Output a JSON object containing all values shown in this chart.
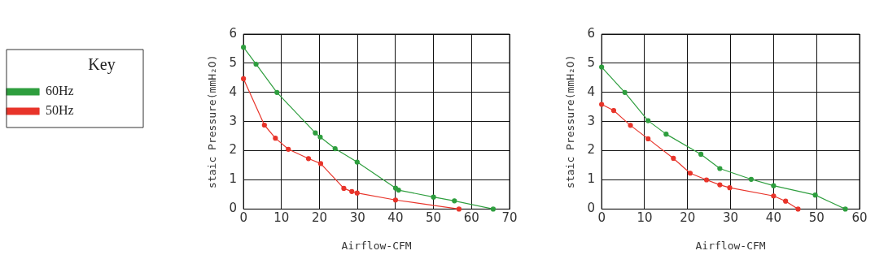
{
  "chart_data": [
    {
      "type": "line",
      "xlabel": "Airflow-CFM",
      "ylabel": "staic Pressure(mmH₂O)",
      "legend_title": "Key",
      "legend": "left",
      "grid": true,
      "marker": "circle",
      "line_style": "solid",
      "xlim": [
        0,
        70
      ],
      "xticks": [
        0,
        10,
        20,
        30,
        40,
        50,
        60,
        70
      ],
      "ylim": [
        0,
        6
      ],
      "yticks": [
        0,
        1,
        2,
        3,
        4,
        5,
        6
      ],
      "series": [
        {
          "name": "60Hz",
          "color": "#2e9e3e",
          "x": [
            0,
            3.3,
            8.8,
            18.9,
            20.2,
            24.1,
            29.9,
            40,
            40.8,
            50,
            55.5,
            65.7
          ],
          "values": [
            5.55,
            4.97,
            4.0,
            2.61,
            2.47,
            2.07,
            1.61,
            0.72,
            0.65,
            0.41,
            0.28,
            0
          ]
        },
        {
          "name": "50Hz",
          "color": "#e8342a",
          "x": [
            0,
            5.5,
            8.4,
            11.8,
            17.1,
            20.3,
            26.4,
            28.5,
            29.9,
            40,
            56.7
          ],
          "values": [
            4.47,
            2.88,
            2.43,
            2.05,
            1.73,
            1.56,
            0.71,
            0.6,
            0.55,
            0.31,
            0
          ]
        }
      ]
    },
    {
      "type": "line",
      "xlabel": "Airflow-CFM",
      "ylabel": "staic Pressure(mmH₂O)",
      "grid": true,
      "marker": "circle",
      "line_style": "solid",
      "xlim": [
        0,
        60
      ],
      "xticks": [
        0,
        10,
        20,
        30,
        40,
        50,
        60
      ],
      "ylim": [
        0,
        6
      ],
      "yticks": [
        0,
        1,
        2,
        3,
        4,
        5,
        6
      ],
      "series": [
        {
          "color": "#2e9e3e",
          "x": [
            0,
            5.4,
            10.8,
            15,
            23.1,
            27.5,
            34.8,
            40,
            49.7,
            56.7
          ],
          "values": [
            4.87,
            4.0,
            3.03,
            2.57,
            1.88,
            1.39,
            1.02,
            0.8,
            0.48,
            0
          ]
        },
        {
          "color": "#e8342a",
          "x": [
            0,
            2.8,
            6.7,
            10.8,
            16.7,
            20.6,
            24.4,
            27.5,
            29.8,
            40,
            42.8,
            45.7
          ],
          "values": [
            3.59,
            3.38,
            2.87,
            2.41,
            1.74,
            1.23,
            1.0,
            0.83,
            0.73,
            0.45,
            0.27,
            0
          ]
        }
      ]
    }
  ]
}
